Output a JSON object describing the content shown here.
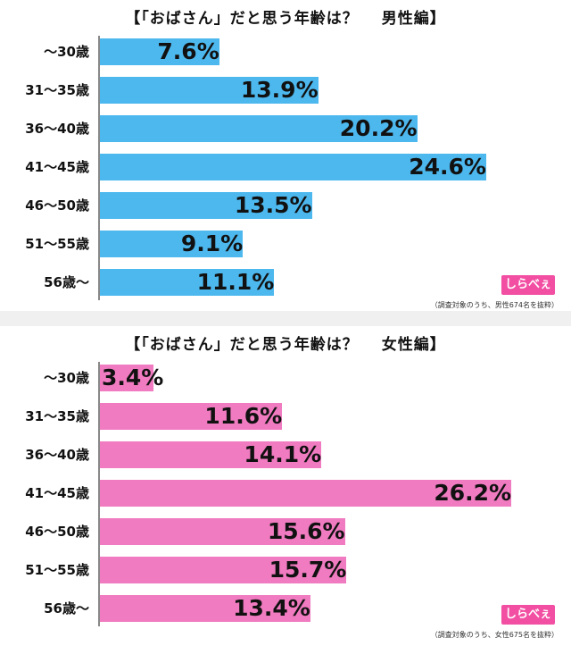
{
  "chart_data": [
    {
      "type": "bar",
      "orientation": "horizontal",
      "title": "【「おばさん」だと思う年齢は？",
      "subtitle": "男性編】",
      "categories": [
        "〜30歳",
        "31〜35歳",
        "36〜40歳",
        "41〜45歳",
        "46〜50歳",
        "51〜55歳",
        "56歳〜"
      ],
      "values": [
        7.6,
        13.9,
        20.2,
        24.6,
        13.5,
        9.1,
        11.1
      ],
      "value_labels": [
        "7.6%",
        "13.9%",
        "20.2%",
        "24.6%",
        "13.5%",
        "9.1%",
        "11.1%"
      ],
      "xlim": [
        0,
        30
      ],
      "bar_color": "#4db8ee",
      "logo": "しらべぇ",
      "note": "（調査対象のうち、男性674名を抜粋）"
    },
    {
      "type": "bar",
      "orientation": "horizontal",
      "title": "【「おばさん」だと思う年齢は？",
      "subtitle": "女性編】",
      "categories": [
        "〜30歳",
        "31〜35歳",
        "36〜40歳",
        "41〜45歳",
        "46〜50歳",
        "51〜55歳",
        "56歳〜"
      ],
      "values": [
        3.4,
        11.6,
        14.1,
        26.2,
        15.6,
        15.7,
        13.4
      ],
      "value_labels": [
        "3.4%",
        "11.6%",
        "14.1%",
        "26.2%",
        "15.6%",
        "15.7%",
        "13.4%"
      ],
      "xlim": [
        0,
        30
      ],
      "bar_color": "#f07bc0",
      "logo": "しらべぇ",
      "note": "（調査対象のうち、女性675名を抜粋）"
    }
  ]
}
